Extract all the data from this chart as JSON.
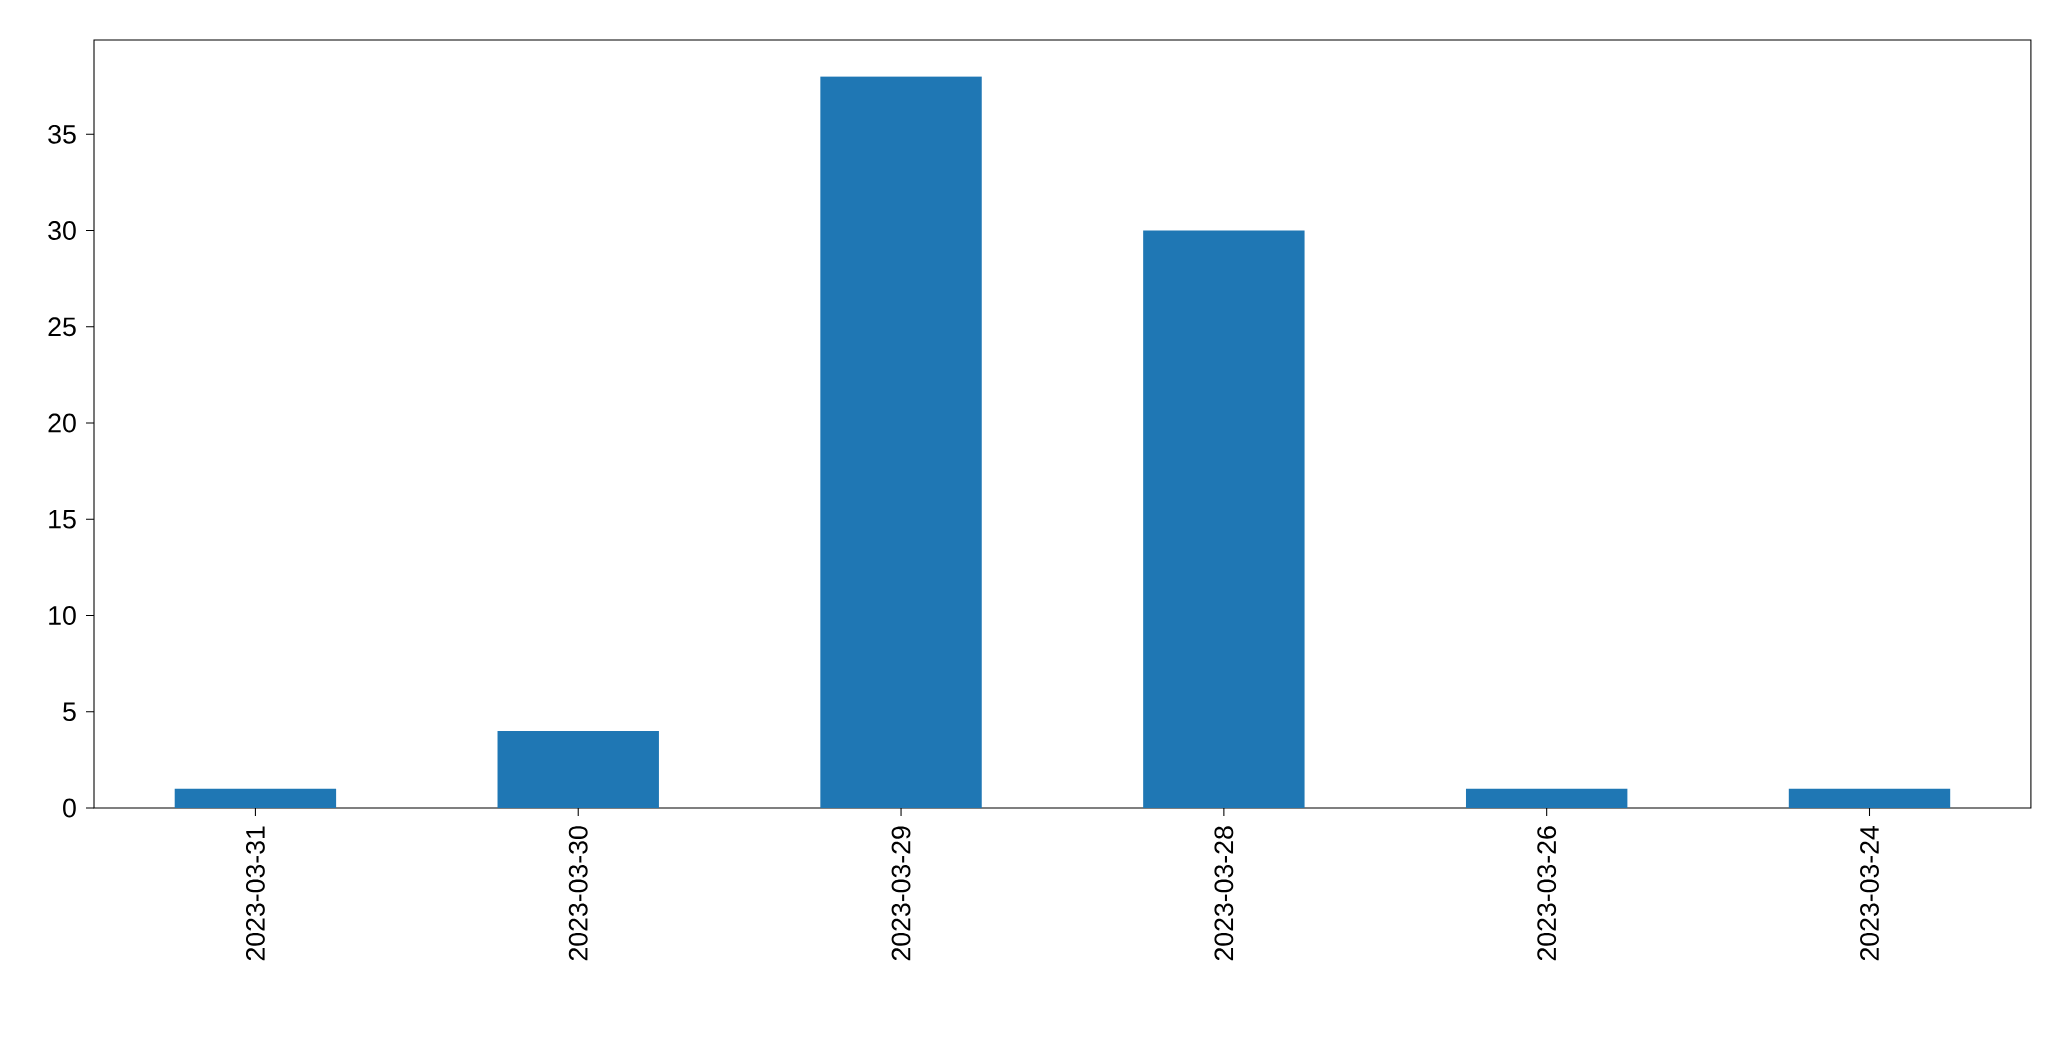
{
  "chart_data": {
    "type": "bar",
    "categories": [
      "2023-03-31",
      "2023-03-30",
      "2023-03-29",
      "2023-03-28",
      "2023-03-26",
      "2023-03-24"
    ],
    "values": [
      1,
      4,
      38,
      30,
      1,
      1
    ],
    "color": "#1f77b4",
    "ylim": [
      0,
      39.9
    ],
    "yticks": [
      0,
      5,
      10,
      15,
      20,
      25,
      30,
      35
    ]
  }
}
